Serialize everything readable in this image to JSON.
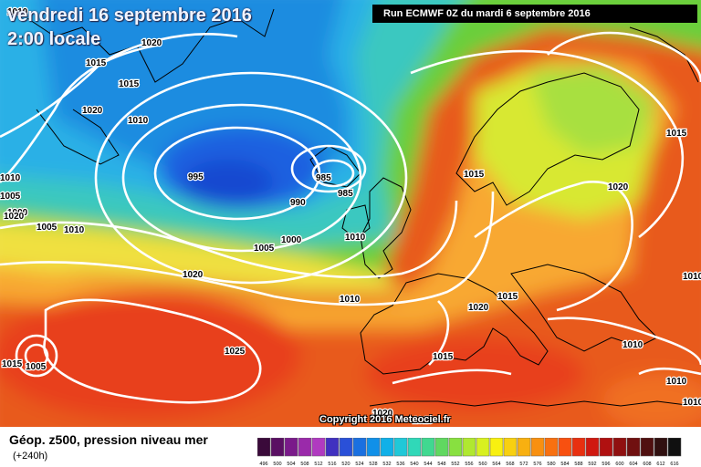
{
  "date_line1": "vendredi 16 septembre 2016",
  "date_line2": "2:00 locale",
  "run_info": "Run ECMWF 0Z du mardi 6 septembre 2016",
  "copyright": "Copyright 2016 Meteociel.fr",
  "footer": {
    "title": "Géop. z500, pression niveau mer",
    "subtitle": "(+240h)"
  },
  "isobar_labels": [
    "1010",
    "1020",
    "1015",
    "1020",
    "1010",
    "1010",
    "1005",
    "1000",
    "1005",
    "1010",
    "995",
    "985",
    "985",
    "990",
    "1000",
    "1005",
    "1020",
    "1010",
    "1015",
    "1020",
    "1015",
    "1010",
    "1025",
    "1015",
    "1005",
    "1020",
    "1015",
    "1015",
    "1010",
    "1020",
    "1015",
    "1010",
    "1010",
    "1020",
    "1010",
    "1015"
  ],
  "scale": {
    "labels": [
      "496",
      "500",
      "504",
      "508",
      "512",
      "516",
      "520",
      "524",
      "528",
      "532",
      "536",
      "540",
      "544",
      "548",
      "552",
      "556",
      "560",
      "564",
      "568",
      "572",
      "576",
      "580",
      "584",
      "588",
      "592",
      "596",
      "600",
      "604",
      "608",
      "612",
      "616"
    ],
    "colors": [
      "#3a0a3a",
      "#5a0f63",
      "#7a1a8a",
      "#9a2aaa",
      "#b03ac0",
      "#4030c0",
      "#2a50d8",
      "#1a70e0",
      "#1090e8",
      "#10b0e8",
      "#20c8d8",
      "#30d8b8",
      "#40d890",
      "#60d860",
      "#88e040",
      "#b0e830",
      "#d8f020",
      "#f8f010",
      "#f8d010",
      "#f8b010",
      "#f89010",
      "#f87010",
      "#f85010",
      "#e83010",
      "#d01810",
      "#b01010",
      "#901010",
      "#701010",
      "#501010",
      "#301010",
      "#101010"
    ]
  }
}
